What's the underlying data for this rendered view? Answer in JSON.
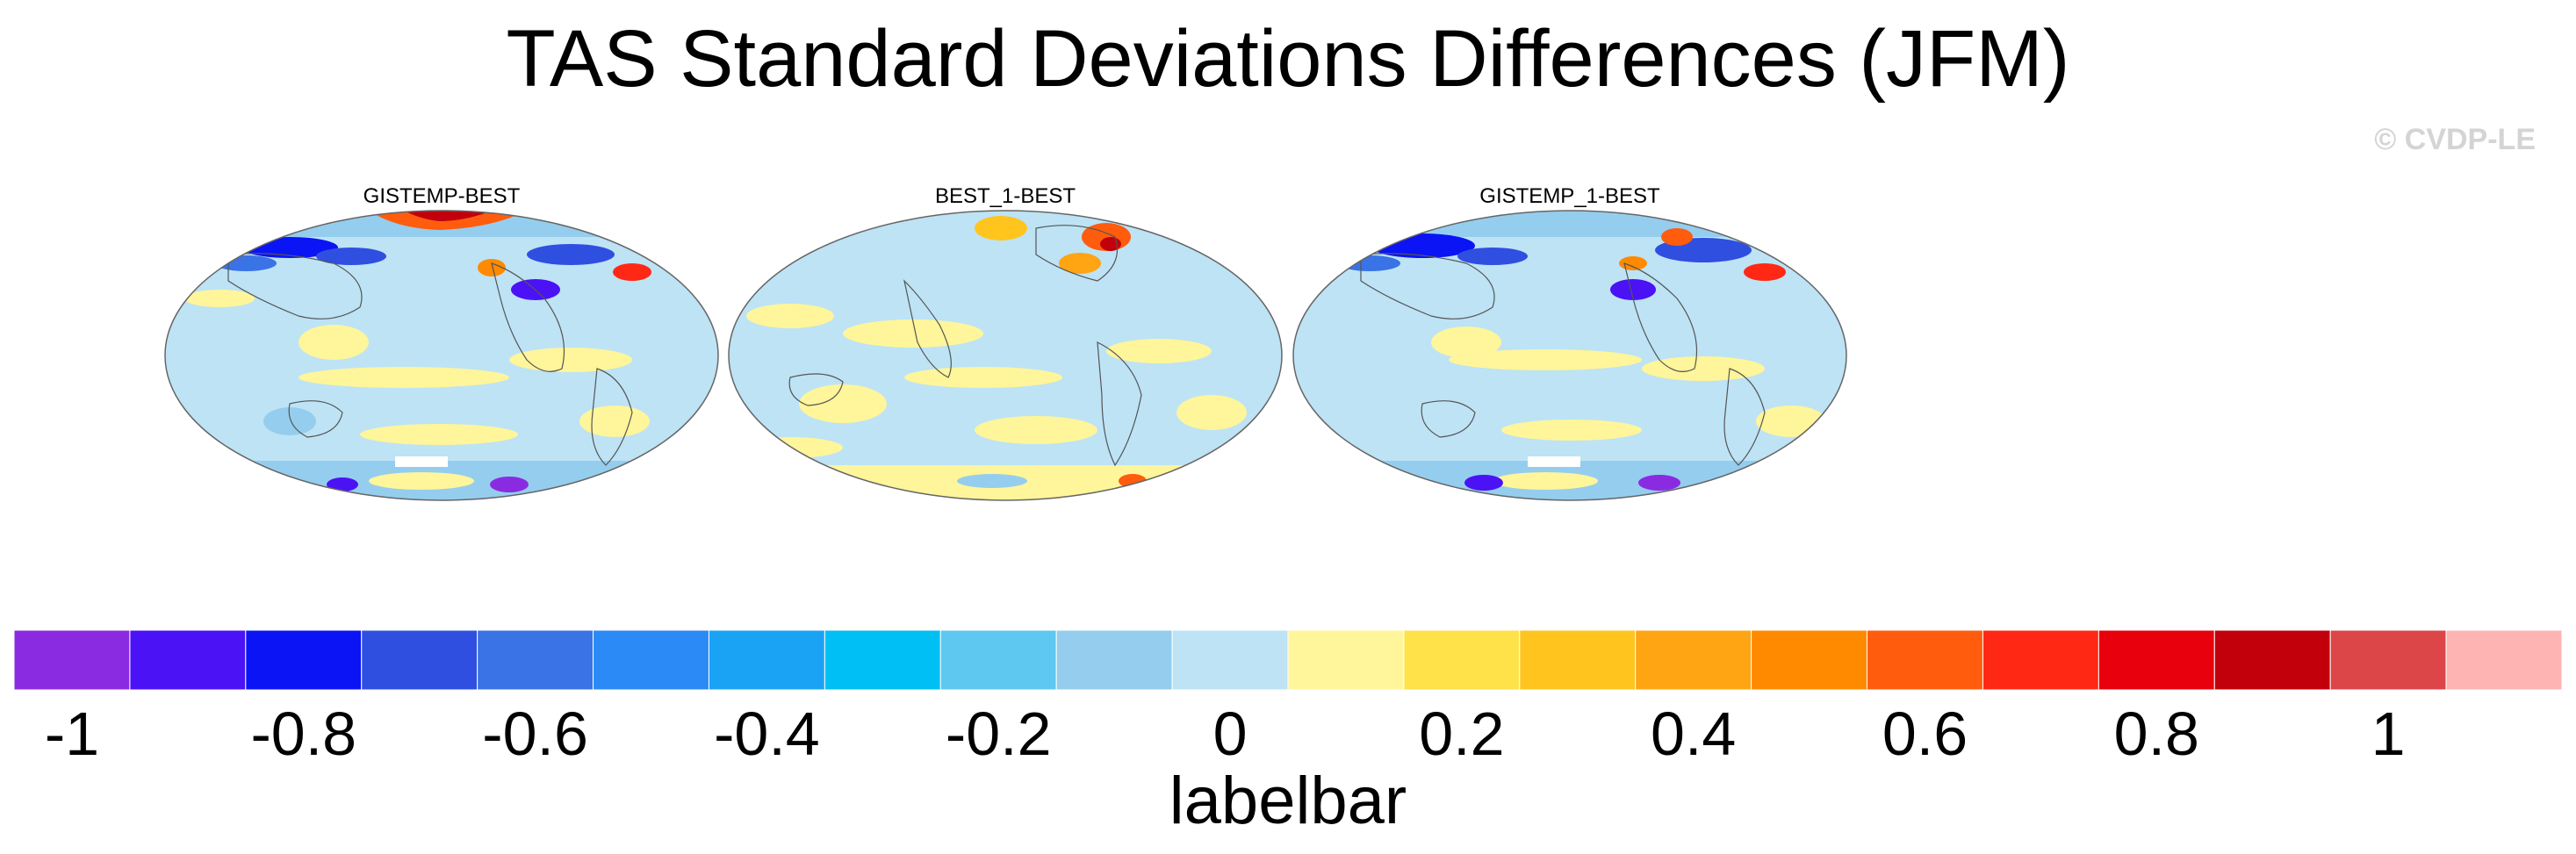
{
  "title": "TAS Standard Deviations Differences (JFM)",
  "watermark": "© CVDP-LE",
  "panels": [
    {
      "title": "GISTEMP-BEST"
    },
    {
      "title": "BEST_1-BEST"
    },
    {
      "title": "GISTEMP_1-BEST"
    }
  ],
  "labelbar": {
    "title": "labelbar",
    "colors": [
      "#8a2be2",
      "#4a12f5",
      "#0a14f5",
      "#2f4fe0",
      "#3a73e5",
      "#2b8af5",
      "#1aa3f5",
      "#00bff5",
      "#5ec8f0",
      "#95cdee",
      "#bde3f5",
      "#fff59a",
      "#ffe24a",
      "#ffc51e",
      "#ffa514",
      "#ff8a00",
      "#ff5c0e",
      "#ff2814",
      "#e8000c",
      "#c2000c",
      "#dc4648",
      "#ffb4b4"
    ],
    "tick_labels": [
      "-1",
      "-0.8",
      "-0.6",
      "-0.4",
      "-0.2",
      "0",
      "0.2",
      "0.4",
      "0.6",
      "0.8",
      "1"
    ]
  }
}
